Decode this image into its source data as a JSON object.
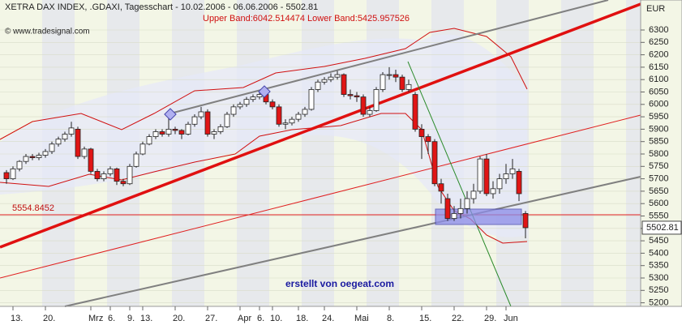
{
  "chart_data": {
    "type": "candlestick",
    "title": "XETRA DAX INDEX, .GDAXI, Tagesschart - 10.02.2006 - 06.06.2006 - 5502.81",
    "subtitle": "Upper Band:6042.514474 Lower Band:5425.957526",
    "source": "© www.tradesignal.com",
    "currency": "EUR",
    "annotation": "erstellt von oegeat.com",
    "hline": 5554.8452,
    "up_color": "#ffffff",
    "down_color": "#e01515",
    "ylim": [
      5200,
      6400
    ],
    "yticks": [
      5200,
      5250,
      5300,
      5350,
      5400,
      5450,
      5500,
      5550,
      5600,
      5650,
      5700,
      5750,
      5800,
      5850,
      5900,
      5950,
      6000,
      6050,
      6100,
      6150,
      6200,
      6250,
      6300
    ],
    "categories": [
      null,
      "13.",
      null,
      null,
      null,
      null,
      "20.",
      null,
      null,
      null,
      null,
      null,
      null,
      "Mrz",
      null,
      null,
      "6.",
      null,
      null,
      "9.",
      null,
      "13.",
      null,
      null,
      null,
      null,
      "20.",
      null,
      null,
      null,
      null,
      "27.",
      null,
      null,
      null,
      null,
      "Apr",
      null,
      null,
      "6.",
      null,
      "10.",
      null,
      null,
      null,
      "18.",
      null,
      null,
      null,
      "24.",
      null,
      null,
      null,
      null,
      "Mai",
      null,
      null,
      null,
      null,
      "8.",
      null,
      null,
      null,
      null,
      "15.",
      null,
      null,
      null,
      null,
      "22.",
      null,
      null,
      null,
      null,
      "29.",
      null,
      null,
      "Jun",
      null,
      null,
      null
    ],
    "candles": [
      [
        5725,
        5735,
        5680,
        5700
      ],
      [
        5700,
        5750,
        5695,
        5740
      ],
      [
        5740,
        5775,
        5730,
        5770
      ],
      [
        5770,
        5800,
        5760,
        5790
      ],
      [
        5790,
        5800,
        5775,
        5785
      ],
      [
        5785,
        5805,
        5775,
        5795
      ],
      [
        5795,
        5820,
        5785,
        5810
      ],
      [
        5810,
        5850,
        5800,
        5840
      ],
      [
        5840,
        5870,
        5830,
        5860
      ],
      [
        5860,
        5890,
        5850,
        5880
      ],
      [
        5880,
        5930,
        5870,
        5905
      ],
      [
        5900,
        5910,
        5780,
        5790
      ],
      [
        5790,
        5830,
        5780,
        5820
      ],
      [
        5820,
        5825,
        5720,
        5730
      ],
      [
        5730,
        5740,
        5690,
        5700
      ],
      [
        5700,
        5730,
        5690,
        5720
      ],
      [
        5720,
        5750,
        5710,
        5740
      ],
      [
        5740,
        5745,
        5675,
        5690
      ],
      [
        5690,
        5700,
        5670,
        5680
      ],
      [
        5680,
        5760,
        5675,
        5750
      ],
      [
        5750,
        5810,
        5745,
        5800
      ],
      [
        5800,
        5850,
        5795,
        5840
      ],
      [
        5840,
        5880,
        5835,
        5870
      ],
      [
        5870,
        5900,
        5860,
        5890
      ],
      [
        5890,
        5900,
        5870,
        5880
      ],
      [
        5880,
        5960,
        5870,
        5900
      ],
      [
        5900,
        5910,
        5880,
        5895
      ],
      [
        5895,
        5900,
        5860,
        5880
      ],
      [
        5880,
        5930,
        5875,
        5920
      ],
      [
        5920,
        5960,
        5910,
        5950
      ],
      [
        5950,
        5990,
        5940,
        5970
      ],
      [
        5970,
        5980,
        5870,
        5880
      ],
      [
        5880,
        5900,
        5860,
        5890
      ],
      [
        5890,
        5920,
        5880,
        5910
      ],
      [
        5910,
        5970,
        5905,
        5960
      ],
      [
        5960,
        6000,
        5950,
        5990
      ],
      [
        5990,
        6010,
        5980,
        6000
      ],
      [
        6000,
        6030,
        5990,
        6020
      ],
      [
        6020,
        6040,
        6010,
        6030
      ],
      [
        6030,
        6050,
        6020,
        6040
      ],
      [
        6040,
        6050,
        6000,
        6010
      ],
      [
        6010,
        6020,
        5980,
        5990
      ],
      [
        5990,
        6000,
        5910,
        5920
      ],
      [
        5920,
        5940,
        5900,
        5925
      ],
      [
        5925,
        5950,
        5915,
        5940
      ],
      [
        5940,
        5970,
        5930,
        5960
      ],
      [
        5960,
        5990,
        5950,
        5980
      ],
      [
        5980,
        6070,
        5975,
        6060
      ],
      [
        6060,
        6100,
        6050,
        6090
      ],
      [
        6090,
        6110,
        6080,
        6100
      ],
      [
        6100,
        6125,
        6090,
        6110
      ],
      [
        6110,
        6135,
        6100,
        6120
      ],
      [
        6120,
        6125,
        6030,
        6040
      ],
      [
        6040,
        6060,
        6020,
        6035
      ],
      [
        6035,
        6050,
        6010,
        6030
      ],
      [
        6030,
        6040,
        5950,
        5960
      ],
      [
        5960,
        5990,
        5950,
        5975
      ],
      [
        5975,
        6070,
        5970,
        6060
      ],
      [
        6060,
        6130,
        6050,
        6120
      ],
      [
        6120,
        6150,
        6100,
        6120
      ],
      [
        6120,
        6140,
        6090,
        6110
      ],
      [
        6110,
        6120,
        6050,
        6060
      ],
      [
        6060,
        6100,
        6050,
        6080
      ],
      [
        6040,
        6050,
        5890,
        5900
      ],
      [
        5900,
        5920,
        5780,
        5870
      ],
      [
        5870,
        5880,
        5800,
        5850
      ],
      [
        5850,
        5860,
        5670,
        5680
      ],
      [
        5680,
        5700,
        5600,
        5650
      ],
      [
        5620,
        5640,
        5530,
        5540
      ],
      [
        5540,
        5590,
        5530,
        5560
      ],
      [
        5560,
        5620,
        5540,
        5580
      ],
      [
        5580,
        5650,
        5560,
        5620
      ],
      [
        5620,
        5680,
        5600,
        5650
      ],
      [
        5650,
        5790,
        5640,
        5780
      ],
      [
        5780,
        5800,
        5630,
        5640
      ],
      [
        5640,
        5690,
        5620,
        5660
      ],
      [
        5660,
        5720,
        5640,
        5700
      ],
      [
        5700,
        5760,
        5680,
        5720
      ],
      [
        5720,
        5780,
        5700,
        5740
      ],
      [
        5730,
        5740,
        5610,
        5640
      ],
      [
        5560,
        5570,
        5460,
        5502.81
      ]
    ]
  }
}
